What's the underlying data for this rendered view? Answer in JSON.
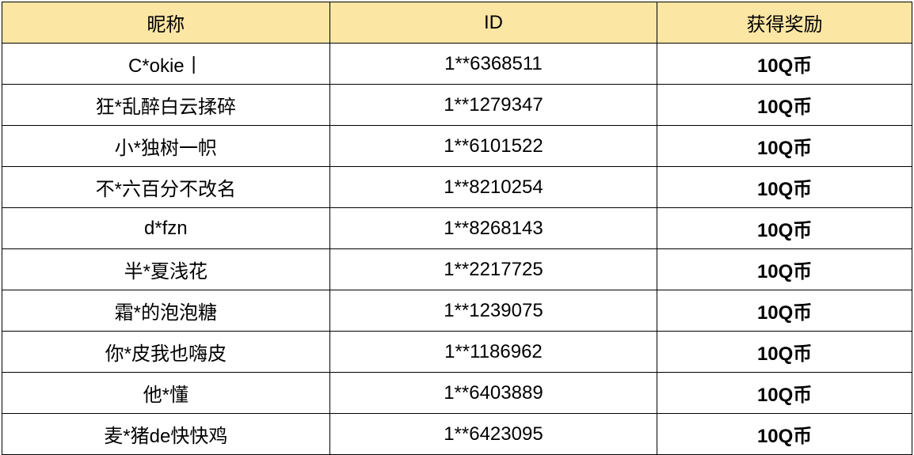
{
  "table": {
    "header_bg_color": "#fce6a4",
    "background_color": "#ffffff",
    "border_color": "#000000",
    "font_size": 24,
    "columns": [
      {
        "key": "nickname",
        "label": "昵称",
        "width_pct": 36
      },
      {
        "key": "id",
        "label": "ID",
        "width_pct": 36
      },
      {
        "key": "reward",
        "label": "获得奖励",
        "width_pct": 28,
        "bold": true
      }
    ],
    "rows": [
      {
        "nickname": "C*okie丨",
        "id": "1**6368511",
        "reward": "10Q币"
      },
      {
        "nickname": "狂*乱醉白云揉碎",
        "id": "1**1279347",
        "reward": "10Q币"
      },
      {
        "nickname": "小*独树一帜",
        "id": "1**6101522",
        "reward": "10Q币"
      },
      {
        "nickname": "不*六百分不改名",
        "id": "1**8210254",
        "reward": "10Q币"
      },
      {
        "nickname": "d*fzn",
        "id": "1**8268143",
        "reward": "10Q币"
      },
      {
        "nickname": "半*夏浅花",
        "id": "1**2217725",
        "reward": "10Q币"
      },
      {
        "nickname": "霜*的泡泡糖",
        "id": "1**1239075",
        "reward": "10Q币"
      },
      {
        "nickname": "你*皮我也嗨皮",
        "id": "1**1186962",
        "reward": "10Q币"
      },
      {
        "nickname": "他*懂",
        "id": "1**6403889",
        "reward": "10Q币"
      },
      {
        "nickname": "麦*猪de快快鸡",
        "id": "1**6423095",
        "reward": "10Q币"
      }
    ]
  }
}
